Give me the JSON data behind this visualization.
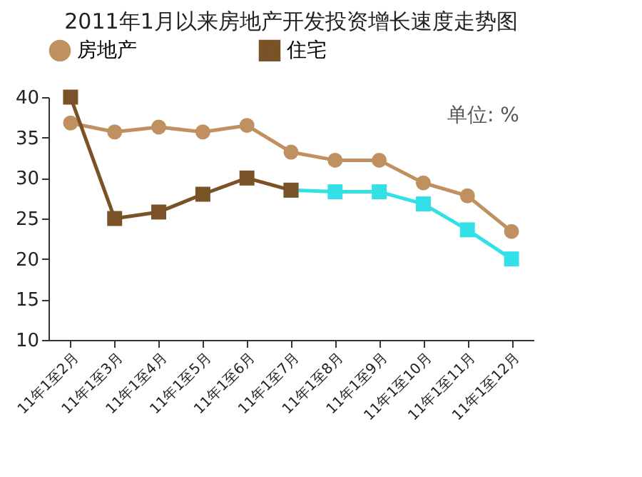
{
  "chart_data": {
    "type": "line",
    "title": "2011年1月以来房地产开发投资增长速度走势图",
    "categories": [
      "11年1至2月",
      "11年1至3月",
      "11年1至4月",
      "11年1至5月",
      "11年1至6月",
      "11年1至7月",
      "11年1至8月",
      "11年1至9月",
      "11年1至10月",
      "11年1至11月",
      "11年1至12月"
    ],
    "series": [
      {
        "name": "房地产",
        "color": "#c09060",
        "marker": "circle",
        "values": [
          36.8,
          35.7,
          36.3,
          35.7,
          36.5,
          33.2,
          32.2,
          32.2,
          29.4,
          27.8,
          23.4
        ]
      },
      {
        "color": "#33e0e8",
        "marker": "square",
        "values": [
          null,
          null,
          null,
          null,
          null,
          28.5,
          28.3,
          28.3,
          26.8,
          23.6,
          20.0
        ]
      },
      {
        "name": "住宅",
        "color": "#7a5228",
        "marker": "square",
        "values": [
          40.0,
          25.0,
          25.8,
          28.0,
          30.0,
          28.5,
          null,
          null,
          null,
          null,
          null
        ]
      }
    ],
    "ylim": [
      10,
      40
    ],
    "yticks": [
      10,
      15,
      20,
      25,
      30,
      35,
      40
    ],
    "grid": false,
    "legend": "top",
    "annotations": [
      "单位: %"
    ]
  }
}
